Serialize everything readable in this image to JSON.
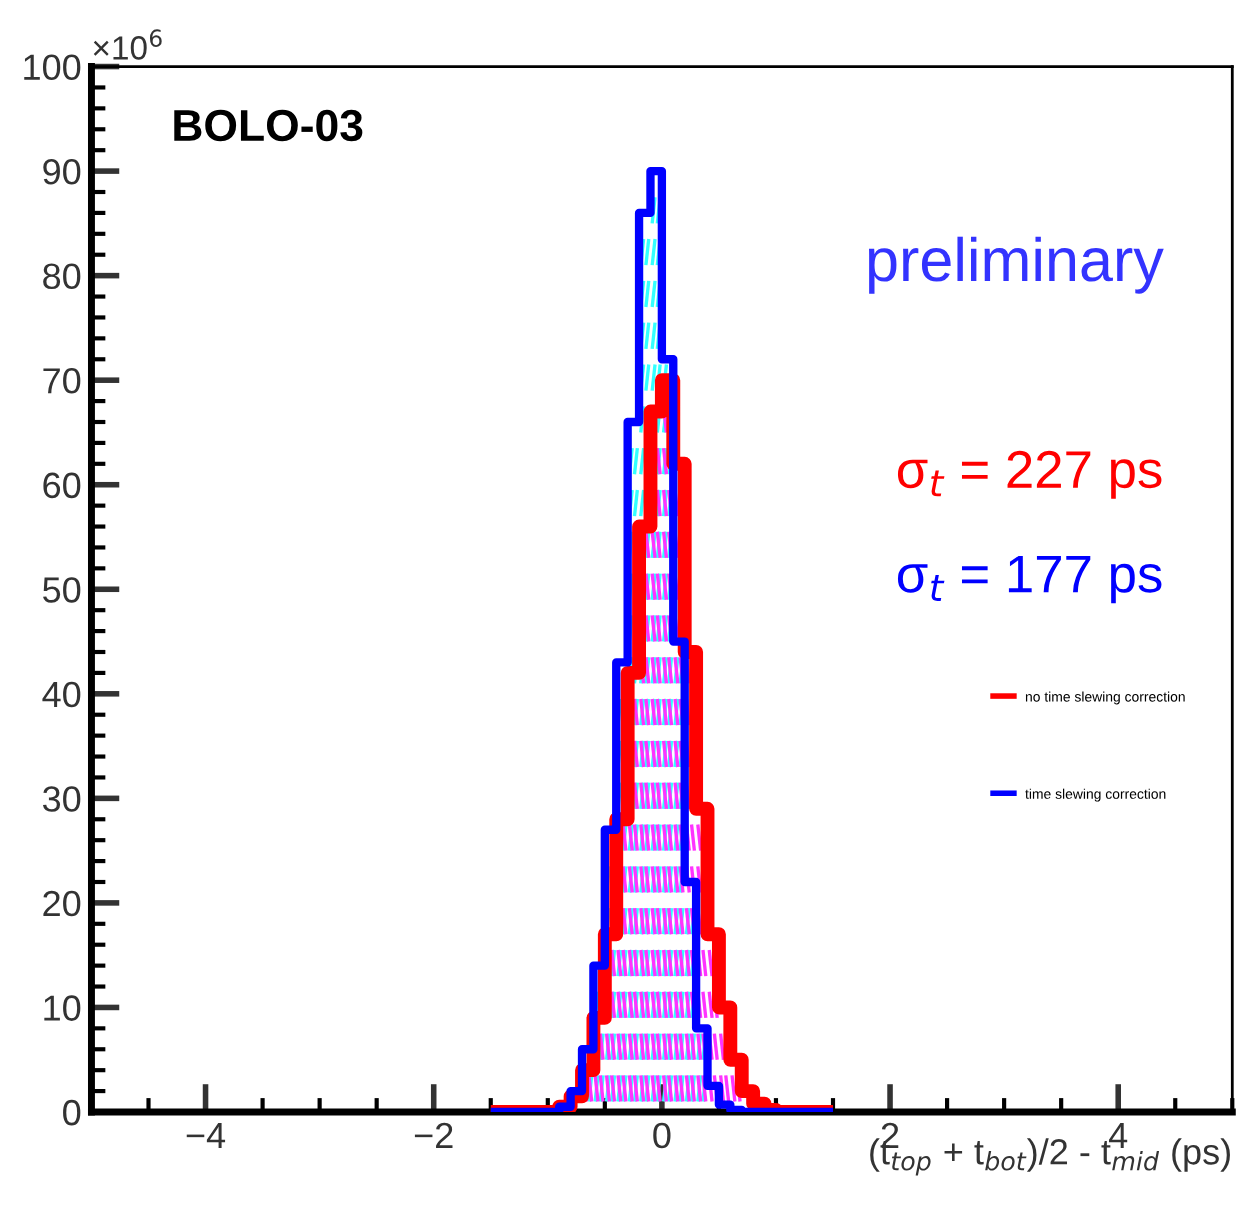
{
  "chart_data": {
    "type": "histogram",
    "bins": [
      -1.5,
      -1.4,
      -1.3,
      -1.2,
      -1.1,
      -1.0,
      -0.9,
      -0.8,
      -0.7,
      -0.6,
      -0.5,
      -0.4,
      -0.3,
      -0.2,
      -0.1,
      0.0,
      0.1,
      0.2,
      0.3,
      0.4,
      0.5,
      0.6,
      0.7,
      0.8,
      0.9,
      1.0,
      1.1,
      1.2,
      1.3,
      1.4,
      1.5
    ],
    "series": [
      {
        "name": "no time slewing correction",
        "color": "#ff0000",
        "values": [
          0,
          0,
          0,
          0,
          0,
          0,
          0.5,
          1.5,
          4,
          9,
          17,
          28,
          42,
          56,
          67,
          70,
          62,
          44,
          29,
          17,
          10,
          5,
          2,
          0.8,
          0.2,
          0,
          0,
          0,
          0,
          0
        ]
      },
      {
        "name": "time slewing correction",
        "color": "#0000ff",
        "values": [
          0,
          0,
          0,
          0,
          0,
          0,
          0.5,
          2,
          6,
          14,
          27,
          43,
          66,
          86,
          90,
          72,
          45,
          22,
          8,
          2.5,
          0.7,
          0.2,
          0,
          0,
          0,
          0,
          0,
          0,
          0,
          0
        ]
      }
    ],
    "xlim": [
      -5,
      5
    ],
    "ylim": [
      0,
      100
    ],
    "xticks": [
      {
        "value": -4,
        "label": "−4"
      },
      {
        "value": -2,
        "label": "−2"
      },
      0,
      2,
      4
    ],
    "yticks": [
      0,
      10,
      20,
      30,
      40,
      50,
      60,
      70,
      80,
      90,
      100
    ],
    "ylabel": "×10$^{6}$",
    "xlabel": "(t$_{top}$ + t$_{bot}$)/2 - t$_{mid}$ (ps)",
    "annotations": [
      "BOLO-03",
      "preliminary",
      "σ$_{t}$ = 227 ps",
      "σ$_{t}$ = 177 ps"
    ],
    "legend": "right",
    "grid": false
  }
}
